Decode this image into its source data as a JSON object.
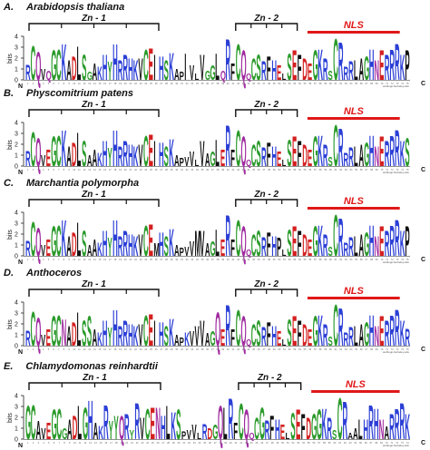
{
  "y_axis_label": "bits",
  "y_ticks": [
    "0",
    "1",
    "2",
    "3",
    "4"
  ],
  "n_term": "N",
  "c_term": "C",
  "credit": "weblogo.berkeley.edu",
  "colors": {
    "hydrophobic": "#111111",
    "polar": "#2a9a2a",
    "basic": "#2b3fd6",
    "acidic": "#d42020",
    "amide": "#a02aa0",
    "nls": "#e01818"
  },
  "panels": [
    {
      "letter": "A.",
      "organism": "Arabidopsis thaliana",
      "zn1": "Zn - 1",
      "zn2": "Zn - 2",
      "nls": "NLS",
      "sequence": "RCQVQGCKADLSGAKHYHRRHKVCEIHSKAPIVLVGGLQRFCQQCSRFHELSEFDEGKRSCRRRLAGHNERRRKP"
    },
    {
      "letter": "B.",
      "organism": "Physcomitrium patens",
      "zn1": "Zn - 1",
      "zn2": "Zn - 2",
      "nls": "NLS",
      "sequence": "RCQVEGCKADLSAAKHYHRRHKVCEIHSKAPVVLVAGLERFCQQCSRFHELSEFDEGKRSCRRRLAGHNERRRKS"
    },
    {
      "letter": "C.",
      "organism": "Marchantia polymorpha",
      "zn1": "Zn - 1",
      "zn2": "Zn - 2",
      "nls": "NLS",
      "sequence": "RCQVEGCKADLSAAKHYHRRHKVCEMHSKAPVVMVAGLERFCQQCSRFHPLSEFDEGKRSCRRRLAGHNERRRKP"
    },
    {
      "letter": "D.",
      "organism": "Anthoceros",
      "zn1": "Zn - 1",
      "zn2": "Zn - 2",
      "nls": "NLS",
      "sequence": "RCQVEGCNADLSSAKHYHRRHKVCEIHSKAPKVVVAGQERFCQQCSRFHELSEFDEGKRSCRRRLAGHNERRRKR"
    },
    {
      "letter": "E.",
      "organism": "Chlamydomonas reinhardtii",
      "zn1": "Zn - 1",
      "zn2": "Zn - 2",
      "nls": "NLS",
      "sequence": "GCAVEGCGADLGHAKRYYQRYRVCENHLKSPVVLRDGQLRFCQQCGRFHELSEFDGGKRSCRAALHRHNARRRK"
    }
  ]
}
